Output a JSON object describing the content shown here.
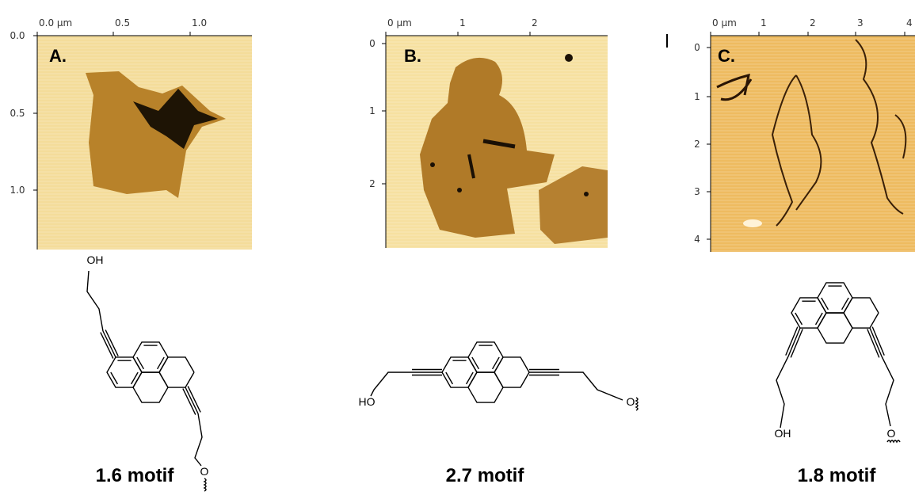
{
  "panels": [
    {
      "label": "A.",
      "x_ticks": [
        "0.0 µm",
        "0.5",
        "1.0"
      ],
      "y_ticks": [
        "0.0",
        "0.5",
        "1.0"
      ],
      "atoms": [
        "OH",
        "O"
      ],
      "caption": "1.6 motif"
    },
    {
      "label": "B.",
      "x_ticks": [
        "0 µm",
        "1",
        "2"
      ],
      "y_ticks": [
        "0",
        "1",
        "2"
      ],
      "atoms": [
        "HO",
        "O"
      ],
      "caption": "2.7 motif"
    },
    {
      "label": "C.",
      "x_ticks": [
        "0 µm",
        "1",
        "2",
        "3",
        "4"
      ],
      "y_ticks": [
        "0",
        "1",
        "2",
        "3",
        "4"
      ],
      "atoms": [
        "OH",
        "O"
      ],
      "caption": "1.8 motif"
    }
  ]
}
